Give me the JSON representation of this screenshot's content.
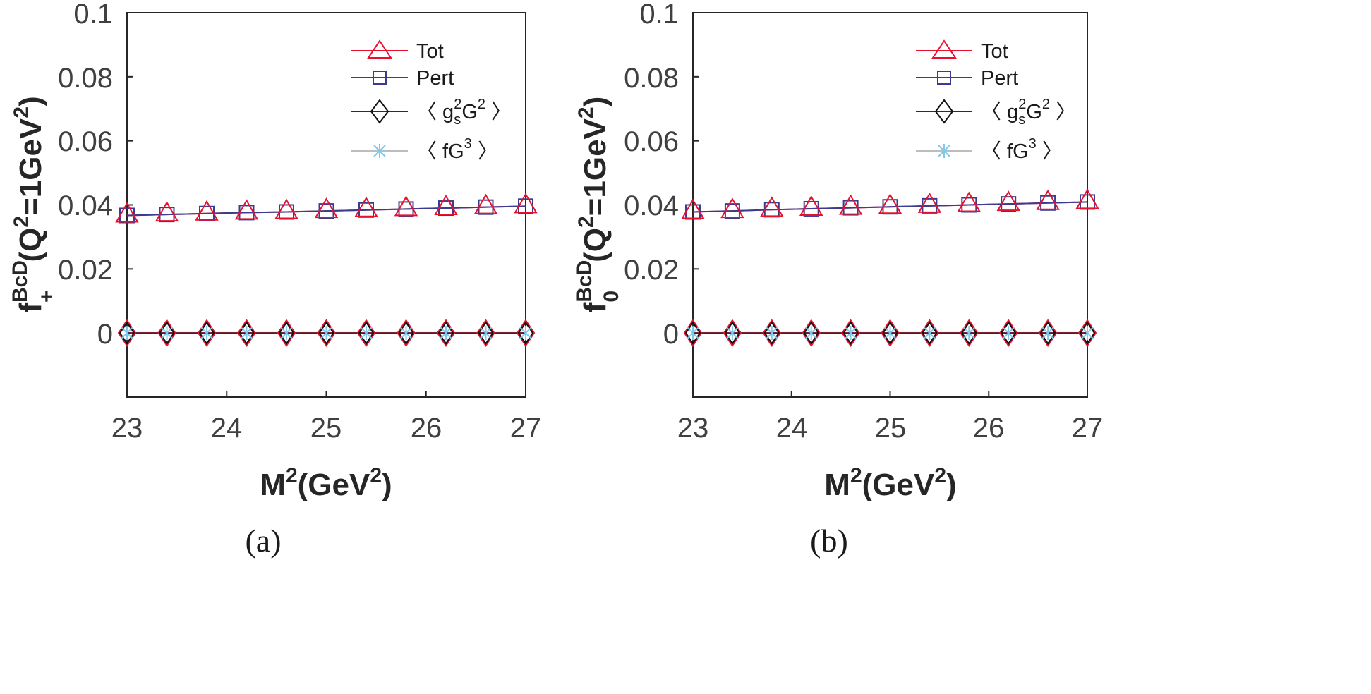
{
  "chart_data": [
    {
      "type": "line",
      "panel_label": "(a)",
      "xlabel": {
        "base": "M",
        "sup1": "2",
        "mid": "(GeV",
        "sup2": "2",
        "end": ")"
      },
      "ylabel": {
        "f": "f",
        "sup": "BcD",
        "sub": "+",
        "mid": "(Q",
        "qsup": "2",
        "rest": "=1GeV",
        "gsup": "2",
        "end": ")"
      },
      "xlim": [
        23,
        27
      ],
      "ylim": [
        -0.02,
        0.1
      ],
      "xticks": [
        "23",
        "24",
        "25",
        "26",
        "27"
      ],
      "yticks": [
        "0",
        "0.02",
        "0.04",
        "0.06",
        "0.08",
        "0.1"
      ],
      "x": [
        23.0,
        23.4,
        23.8,
        24.2,
        24.6,
        25.0,
        25.4,
        25.8,
        26.2,
        26.6,
        27.0
      ],
      "series": [
        {
          "name": "Tot",
          "values": [
            0.0367,
            0.037,
            0.0373,
            0.0376,
            0.0378,
            0.0381,
            0.0384,
            0.0387,
            0.039,
            0.0393,
            0.0396
          ]
        },
        {
          "name": "Pert",
          "values": [
            0.0367,
            0.037,
            0.0373,
            0.0376,
            0.0378,
            0.0381,
            0.0384,
            0.0387,
            0.039,
            0.0393,
            0.0396
          ]
        },
        {
          "name": "g_s^2 G^2",
          "values": [
            0,
            0,
            0,
            0,
            0,
            0,
            0,
            0,
            0,
            0,
            0
          ]
        },
        {
          "name": "fG^3",
          "values": [
            0,
            0,
            0,
            0,
            0,
            0,
            0,
            0,
            0,
            0,
            0
          ]
        }
      ]
    },
    {
      "type": "line",
      "panel_label": "(b)",
      "xlabel": {
        "base": "M",
        "sup1": "2",
        "mid": "(GeV",
        "sup2": "2",
        "end": ")"
      },
      "ylabel": {
        "f": "f",
        "sup": "BcD",
        "sub": "0",
        "mid": "(Q",
        "qsup": "2",
        "rest": "=1GeV",
        "gsup": "2",
        "end": ")"
      },
      "xlim": [
        23,
        27
      ],
      "ylim": [
        -0.02,
        0.1
      ],
      "xticks": [
        "23",
        "24",
        "25",
        "26",
        "27"
      ],
      "yticks": [
        "0",
        "0.02",
        "0.04",
        "0.06",
        "0.08",
        "0.1"
      ],
      "x": [
        23.0,
        23.4,
        23.8,
        24.2,
        24.6,
        25.0,
        25.4,
        25.8,
        26.2,
        26.6,
        27.0
      ],
      "series": [
        {
          "name": "Tot",
          "values": [
            0.0378,
            0.0381,
            0.0385,
            0.0388,
            0.0391,
            0.0394,
            0.0397,
            0.04,
            0.0403,
            0.0406,
            0.0409
          ]
        },
        {
          "name": "Pert",
          "values": [
            0.0378,
            0.0381,
            0.0385,
            0.0388,
            0.0391,
            0.0394,
            0.0397,
            0.04,
            0.0403,
            0.0406,
            0.0409
          ]
        },
        {
          "name": "g_s^2 G^2",
          "values": [
            0,
            0,
            0,
            0,
            0,
            0,
            0,
            0,
            0,
            0,
            0
          ]
        },
        {
          "name": "fG^3",
          "values": [
            0,
            0,
            0,
            0,
            0,
            0,
            0,
            0,
            0,
            0,
            0
          ]
        }
      ]
    }
  ],
  "legend": {
    "tot": "Tot",
    "pert": "Pert",
    "cond": {
      "open": "〈 g",
      "sub": "s",
      "sup1": "2",
      "mid": "G",
      "sup2": "2",
      "close": " 〉"
    },
    "gluon3": {
      "open": "〈 fG",
      "sup": "3",
      "close": " 〉"
    }
  },
  "colors": {
    "tot": "#e8112d",
    "pert": "#3b3b8f",
    "cond": "#6e0f1f",
    "gluon3": "#7ec8ee",
    "cond_marker_dark": "#111111"
  }
}
